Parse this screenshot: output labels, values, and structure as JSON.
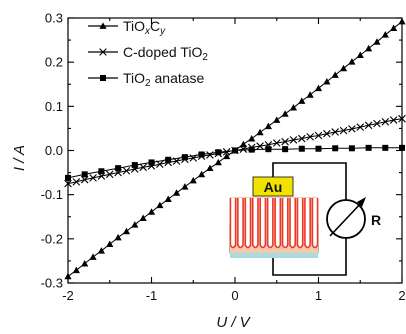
{
  "chart_data": {
    "type": "line",
    "xlabel": "U / V",
    "ylabel": "I / A",
    "xlim": [
      -2,
      2
    ],
    "ylim": [
      -0.3,
      0.3
    ],
    "x_ticks": [
      "-2",
      "-1",
      "0",
      "1",
      "2"
    ],
    "y_ticks": [
      "-0.3",
      "-0.2",
      "-0.1",
      "0.0",
      "0.1",
      "0.2",
      "0.3"
    ],
    "grid": false,
    "legend_position": "top-left",
    "series": [
      {
        "name": "TiOxCy",
        "legend_parts": [
          {
            "text": "TiO",
            "sub": false
          },
          {
            "text": "x",
            "sub": true
          },
          {
            "text": "C",
            "sub": false
          },
          {
            "text": "y",
            "sub": true
          }
        ],
        "marker": "triangle",
        "x": [
          -2.0,
          -1.9,
          -1.8,
          -1.7,
          -1.6,
          -1.5,
          -1.4,
          -1.3,
          -1.2,
          -1.1,
          -1.0,
          -0.9,
          -0.8,
          -0.7,
          -0.6,
          -0.5,
          -0.4,
          -0.3,
          -0.2,
          -0.1,
          0.0,
          0.1,
          0.2,
          0.3,
          0.4,
          0.5,
          0.6,
          0.7,
          0.8,
          0.9,
          1.0,
          1.1,
          1.2,
          1.3,
          1.4,
          1.5,
          1.6,
          1.7,
          1.8,
          1.9,
          2.0
        ],
        "y": [
          -0.285,
          -0.271,
          -0.256,
          -0.241,
          -0.227,
          -0.212,
          -0.197,
          -0.183,
          -0.168,
          -0.153,
          -0.139,
          -0.124,
          -0.11,
          -0.096,
          -0.082,
          -0.068,
          -0.054,
          -0.04,
          -0.027,
          -0.013,
          0.0,
          0.014,
          0.027,
          0.041,
          0.055,
          0.069,
          0.083,
          0.097,
          0.112,
          0.126,
          0.141,
          0.156,
          0.171,
          0.186,
          0.201,
          0.216,
          0.231,
          0.246,
          0.262,
          0.277,
          0.292
        ]
      },
      {
        "name": "C-doped TiO2",
        "legend_parts": [
          {
            "text": "C-doped TiO",
            "sub": false
          },
          {
            "text": "2",
            "sub": true
          }
        ],
        "marker": "cross",
        "x": [
          -2.0,
          -1.9,
          -1.8,
          -1.7,
          -1.6,
          -1.5,
          -1.4,
          -1.3,
          -1.2,
          -1.1,
          -1.0,
          -0.9,
          -0.8,
          -0.7,
          -0.6,
          -0.5,
          -0.4,
          -0.3,
          -0.2,
          -0.1,
          0.0,
          0.1,
          0.2,
          0.3,
          0.4,
          0.5,
          0.6,
          0.7,
          0.8,
          0.9,
          1.0,
          1.1,
          1.2,
          1.3,
          1.4,
          1.5,
          1.6,
          1.7,
          1.8,
          1.9,
          2.0
        ],
        "y": [
          -0.075,
          -0.071,
          -0.066,
          -0.062,
          -0.058,
          -0.054,
          -0.05,
          -0.046,
          -0.042,
          -0.038,
          -0.035,
          -0.031,
          -0.027,
          -0.024,
          -0.02,
          -0.017,
          -0.013,
          -0.01,
          -0.007,
          -0.003,
          0.0,
          0.003,
          0.007,
          0.01,
          0.013,
          0.017,
          0.02,
          0.024,
          0.027,
          0.031,
          0.034,
          0.038,
          0.042,
          0.045,
          0.049,
          0.053,
          0.057,
          0.061,
          0.065,
          0.069,
          0.072
        ]
      },
      {
        "name": "TiO2 anatase",
        "legend_parts": [
          {
            "text": "TiO",
            "sub": false
          },
          {
            "text": "2",
            "sub": true
          },
          {
            "text": " anatase",
            "sub": false
          }
        ],
        "marker": "square",
        "x": [
          -2.0,
          -1.8,
          -1.6,
          -1.4,
          -1.2,
          -1.0,
          -0.8,
          -0.6,
          -0.4,
          -0.2,
          0.0,
          0.2,
          0.4,
          0.6,
          0.8,
          1.0,
          1.2,
          1.4,
          1.6,
          1.8,
          2.0
        ],
        "y": [
          -0.062,
          -0.054,
          -0.047,
          -0.04,
          -0.033,
          -0.027,
          -0.021,
          -0.015,
          -0.009,
          -0.004,
          0.0,
          0.002,
          0.003,
          0.003,
          0.004,
          0.004,
          0.005,
          0.005,
          0.006,
          0.006,
          0.006
        ]
      }
    ],
    "inset": {
      "electrode_label": "Au",
      "component_label": "R",
      "colors": {
        "electrode": "#f2e200",
        "tubes": "#e83a2a",
        "tube_bg": "#f7c8b0",
        "substrate": "#a8dcdf"
      }
    }
  }
}
